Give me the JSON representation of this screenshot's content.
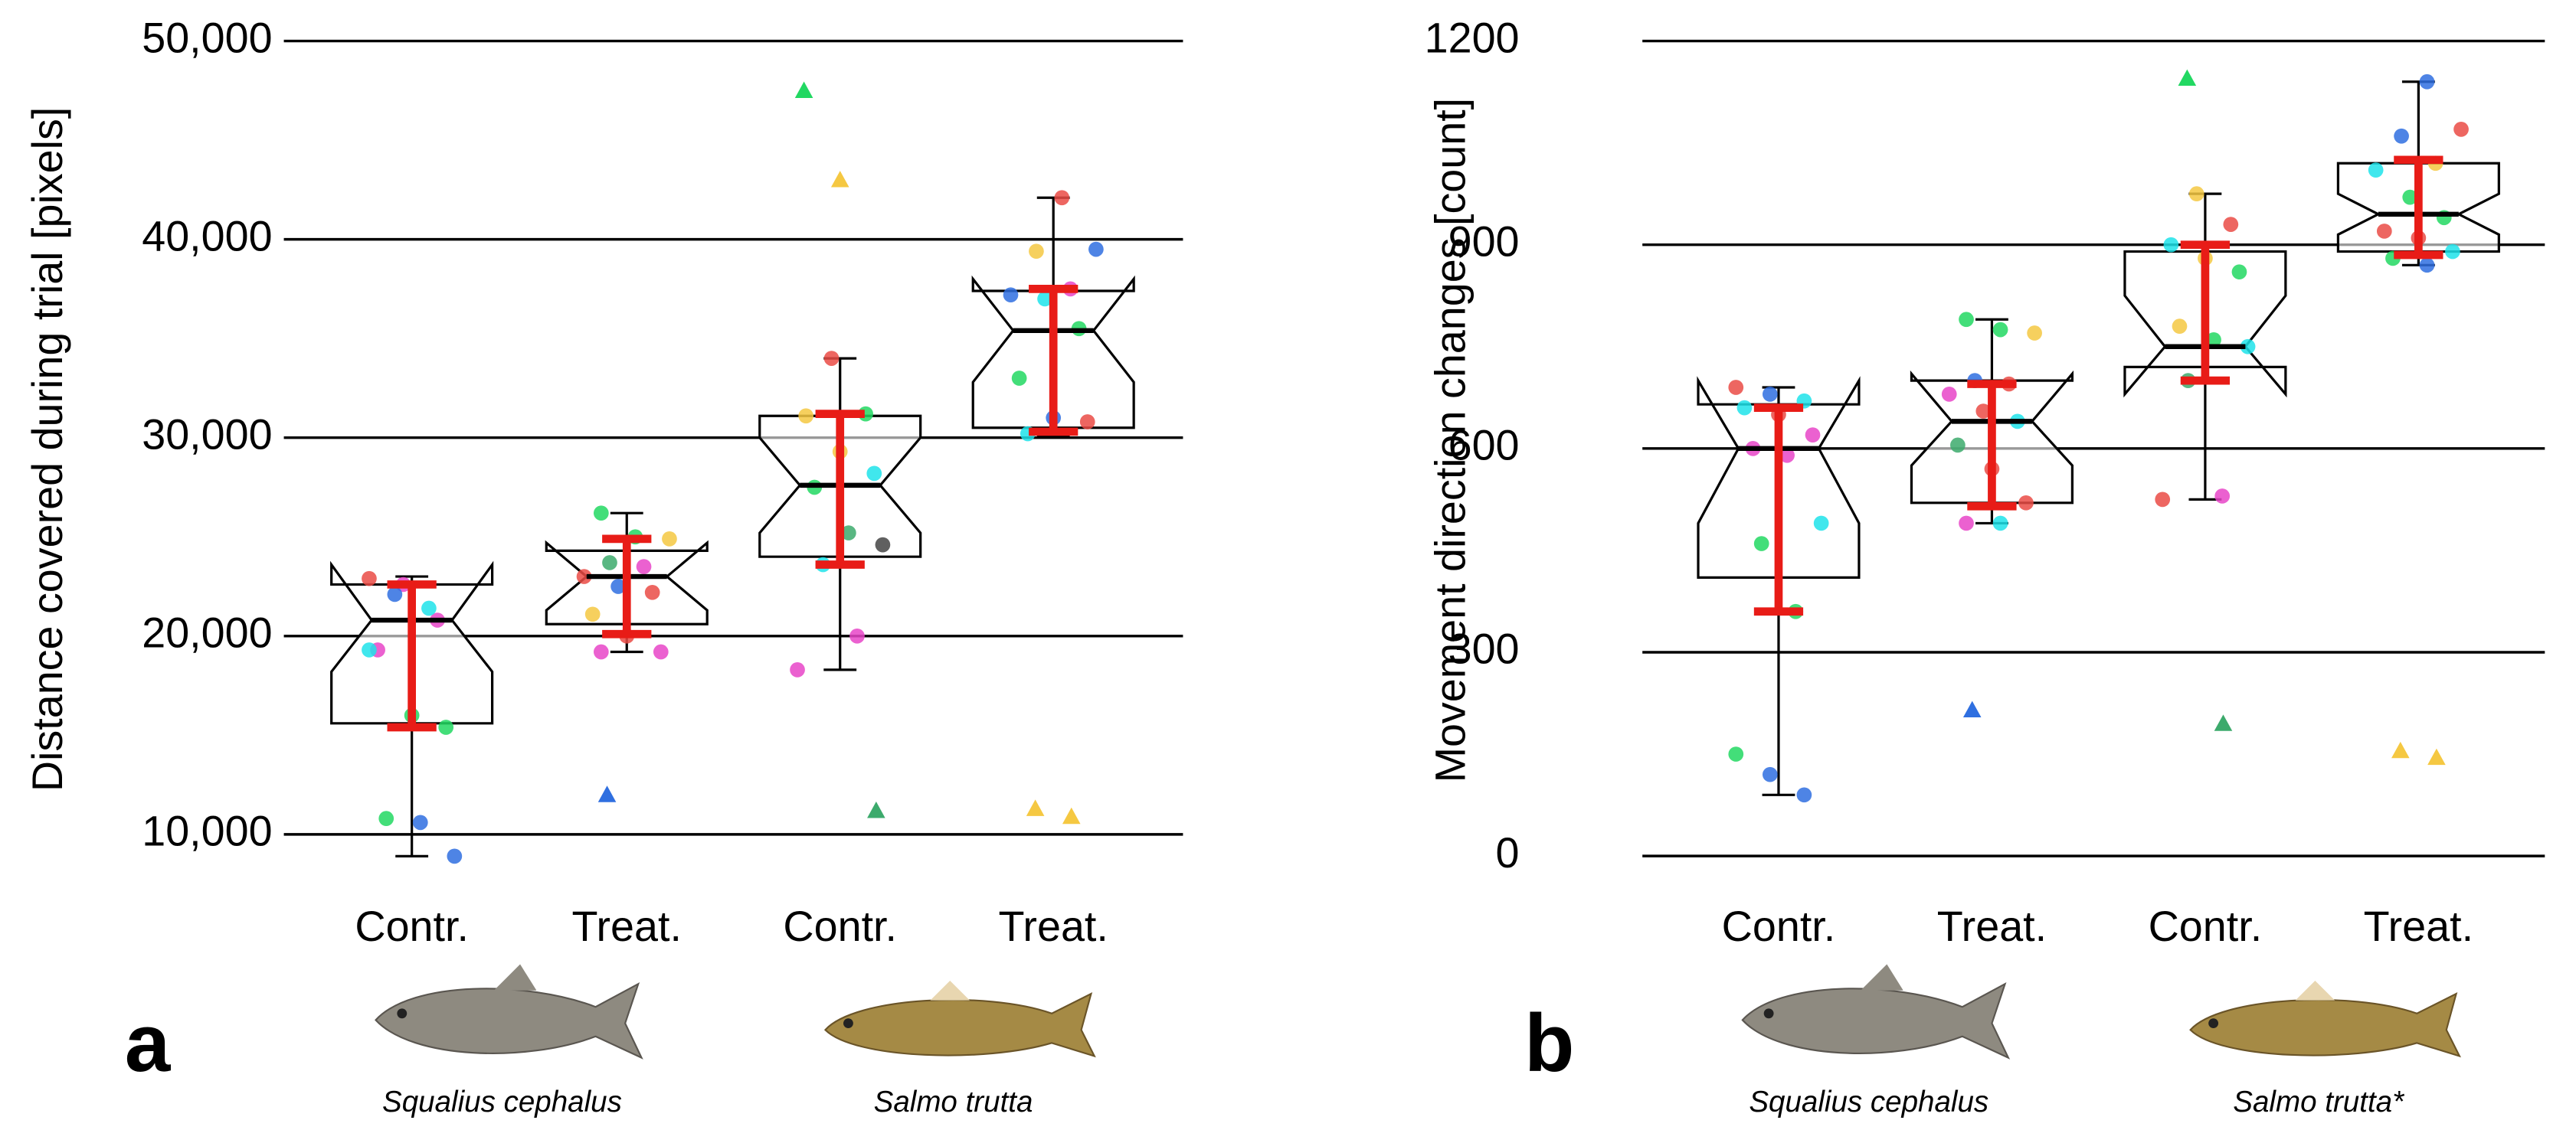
{
  "chart_data": [
    {
      "type": "box",
      "panel_label": "a",
      "ylabel": "Distance covered during trial [pixels]",
      "categories": [
        "Contr.",
        "Treat.",
        "Contr.",
        "Treat."
      ],
      "species": [
        "Squalius cephalus",
        "Salmo trutta"
      ],
      "ylim": [
        8000,
        50000
      ],
      "yticks": [
        {
          "value": 10000,
          "label": "10,000"
        },
        {
          "value": 20000,
          "label": "20,000"
        },
        {
          "value": 30000,
          "label": "30,000"
        },
        {
          "value": 40000,
          "label": "40,000"
        },
        {
          "value": 50000,
          "label": "50,000"
        }
      ],
      "grid": true,
      "boxes": [
        {
          "whisker_low": 8900,
          "q1": 15600,
          "notch_low": 18200,
          "median": 20800,
          "notch_high": 23600,
          "q3": 22600,
          "whisker_high": 23000,
          "mean": 19000,
          "sd": 3600,
          "points": [
            22900,
            22600,
            20800,
            19300,
            16000,
            15400,
            10800,
            10600,
            8900,
            22100,
            21400,
            19300
          ],
          "point_colors": [
            "#ea4b45",
            "#e845c8",
            "#e845c8",
            "#e845c8",
            "#22d862",
            "#22d862",
            "#22d862",
            "#2f6fe0",
            "#2f6fe0",
            "#2f6fe0",
            "#1ee3ea",
            "#1ee3ea"
          ],
          "outliers": [],
          "outlier_colors": []
        },
        {
          "whisker_low": 19200,
          "q1": 20600,
          "notch_low": 21300,
          "median": 23000,
          "notch_high": 24700,
          "q3": 24300,
          "whisker_high": 26200,
          "mean": 22500,
          "sd": 2400,
          "points": [
            26200,
            25000,
            24900,
            23700,
            23500,
            23000,
            22500,
            22200,
            21100,
            20000,
            19200,
            19200
          ],
          "point_colors": [
            "#22d862",
            "#22d862",
            "#f5c842",
            "#3caa6c",
            "#e845c8",
            "#ea4b45",
            "#2f6fe0",
            "#ea4b45",
            "#f5c842",
            "#ea4b45",
            "#e845c8",
            "#e845c8"
          ],
          "outliers": [
            12000
          ],
          "outlier_colors": [
            "#2f6fe0"
          ]
        },
        {
          "whisker_low": 18300,
          "q1": 24000,
          "notch_low": 25200,
          "median": 27600,
          "notch_high": 30000,
          "q3": 31100,
          "whisker_high": 34000,
          "mean": 27400,
          "sd": 3800,
          "points": [
            34000,
            31200,
            31100,
            29300,
            28200,
            27500,
            25200,
            24600,
            23600,
            20000,
            18300
          ],
          "point_colors": [
            "#ea4b45",
            "#22d862",
            "#f5c842",
            "#f5c842",
            "#1ee3ea",
            "#22d862",
            "#3caa6c",
            "#444444",
            "#1ee3ea",
            "#e845c8",
            "#e845c8"
          ],
          "outliers": [
            47500,
            43000,
            11200
          ],
          "outlier_colors": [
            "#22d862",
            "#f5c842",
            "#3caa6c"
          ]
        },
        {
          "whisker_low": 30100,
          "q1": 30500,
          "notch_low": 32800,
          "median": 35400,
          "notch_high": 38000,
          "q3": 37400,
          "whisker_high": 42100,
          "mean": 33900,
          "sd": 3600,
          "points": [
            42100,
            39500,
            39400,
            37500,
            37200,
            37000,
            35500,
            33000,
            31000,
            30800,
            30200
          ],
          "point_colors": [
            "#ea4b45",
            "#2f6fe0",
            "#f5c842",
            "#e845c8",
            "#2f6fe0",
            "#1ee3ea",
            "#22d862",
            "#22d862",
            "#2f6fe0",
            "#ea4b45",
            "#1ee3ea"
          ],
          "outliers": [
            11300,
            10900
          ],
          "outlier_colors": [
            "#f5c842",
            "#f5c842"
          ]
        }
      ]
    },
    {
      "type": "box",
      "panel_label": "b",
      "ylabel": "Movement direction changes [count]",
      "categories": [
        "Contr.",
        "Treat.",
        "Contr.",
        "Treat."
      ],
      "species": [
        "Squalius cephalus",
        "Salmo trutta*"
      ],
      "ylim": [
        0,
        1200
      ],
      "yticks": [
        0,
        300,
        600,
        900,
        1200
      ],
      "grid": true,
      "boxes": [
        {
          "whisker_low": 90,
          "q1": 410,
          "notch_low": 490,
          "median": 600,
          "notch_high": 700,
          "q3": 665,
          "whisker_high": 690,
          "mean": 510,
          "sd": 150,
          "points": [
            690,
            680,
            670,
            660,
            650,
            620,
            600,
            590,
            490,
            460,
            360,
            150,
            120,
            90
          ],
          "point_colors": [
            "#ea4b45",
            "#2f6fe0",
            "#1ee3ea",
            "#1ee3ea",
            "#ea4b45",
            "#e845c8",
            "#e845c8",
            "#e845c8",
            "#1ee3ea",
            "#22d862",
            "#22d862",
            "#22d862",
            "#2f6fe0",
            "#2f6fe0"
          ],
          "outliers": [],
          "outlier_colors": []
        },
        {
          "whisker_low": 490,
          "q1": 520,
          "notch_low": 575,
          "median": 640,
          "notch_high": 710,
          "q3": 700,
          "whisker_high": 790,
          "mean": 605,
          "sd": 90,
          "points": [
            790,
            775,
            770,
            700,
            695,
            680,
            655,
            640,
            605,
            570,
            520,
            490,
            490
          ],
          "point_colors": [
            "#22d862",
            "#22d862",
            "#f5c842",
            "#2f6fe0",
            "#ea4b45",
            "#e845c8",
            "#ea4b45",
            "#1ee3ea",
            "#3caa6c",
            "#ea4b45",
            "#ea4b45",
            "#e845c8",
            "#1ee3ea"
          ],
          "outliers": [
            215
          ],
          "outlier_colors": [
            "#2f6fe0"
          ]
        },
        {
          "whisker_low": 525,
          "q1": 720,
          "notch_low": 680,
          "median": 750,
          "notch_high": 825,
          "q3": 890,
          "whisker_high": 975,
          "mean": 800,
          "sd": 100,
          "points": [
            975,
            930,
            900,
            880,
            860,
            780,
            760,
            750,
            700,
            530,
            525
          ],
          "point_colors": [
            "#f5c842",
            "#ea4b45",
            "#1ee3ea",
            "#f5c842",
            "#22d862",
            "#f5c842",
            "#22d862",
            "#1ee3ea",
            "#3caa6c",
            "#e845c8",
            "#ea4b45"
          ],
          "outliers": [
            1145,
            195
          ],
          "outlier_colors": [
            "#22d862",
            "#3caa6c"
          ]
        },
        {
          "whisker_low": 870,
          "q1": 890,
          "notch_low": 915,
          "median": 945,
          "notch_high": 975,
          "q3": 1020,
          "whisker_high": 1140,
          "mean": 955,
          "sd": 70,
          "points": [
            1140,
            1070,
            1060,
            1020,
            1010,
            970,
            940,
            920,
            910,
            890,
            880,
            870
          ],
          "point_colors": [
            "#2f6fe0",
            "#ea4b45",
            "#2f6fe0",
            "#f5c842",
            "#1ee3ea",
            "#22d862",
            "#22d862",
            "#ea4b45",
            "#ea4b45",
            "#1ee3ea",
            "#22d862",
            "#2f6fe0"
          ],
          "outliers": [
            155,
            145
          ],
          "outlier_colors": [
            "#f5c842",
            "#f5c842"
          ]
        }
      ]
    }
  ]
}
